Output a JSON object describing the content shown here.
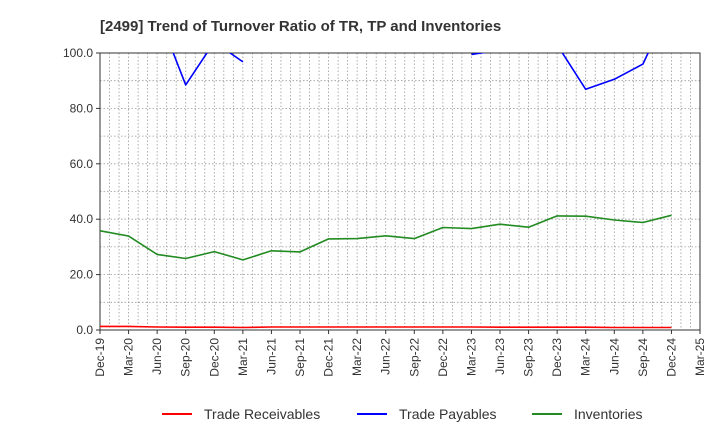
{
  "chart_data": {
    "type": "line",
    "title": "[2499]  Trend of Turnover Ratio of TR, TP and Inventories",
    "xlabel": "",
    "ylabel": "",
    "ylim": [
      0,
      100
    ],
    "yticks": [
      "0.0",
      "20.0",
      "40.0",
      "60.0",
      "80.0",
      "100.0"
    ],
    "x_tick_labels": [
      "Dec-19",
      "Mar-20",
      "Jun-20",
      "Sep-20",
      "Dec-20",
      "Mar-21",
      "Jun-21",
      "Sep-21",
      "Dec-21",
      "Mar-22",
      "Jun-22",
      "Sep-22",
      "Dec-22",
      "Mar-23",
      "Jun-23",
      "Sep-23",
      "Dec-23",
      "Mar-24",
      "Jun-24",
      "Sep-24",
      "Dec-24",
      "Mar-25"
    ],
    "x": [
      "Dec-19",
      "Mar-20",
      "Jun-20",
      "Sep-20",
      "Dec-20",
      "Mar-21",
      "Jun-21",
      "Sep-21",
      "Dec-21",
      "Mar-22",
      "Jun-22",
      "Sep-22",
      "Dec-22",
      "Mar-23",
      "Jun-23",
      "Sep-23",
      "Dec-23",
      "Mar-24",
      "Jun-24",
      "Sep-24",
      "Dec-24"
    ],
    "grid": true,
    "legend_position": "bottom",
    "series": [
      {
        "name": "Trade Receivables",
        "color": "#ff0000",
        "values": [
          1.3,
          1.3,
          1.1,
          1.0,
          1.0,
          0.9,
          1.1,
          1.1,
          1.1,
          1.1,
          1.1,
          1.1,
          1.1,
          1.1,
          1.0,
          1.0,
          1.0,
          1.0,
          0.9,
          0.9,
          0.9
        ]
      },
      {
        "name": "Trade Payables",
        "color": "#0000ff",
        "values": [
          null,
          null,
          115,
          88.5,
          104,
          96.8,
          null,
          null,
          null,
          null,
          null,
          null,
          null,
          99.5,
          101,
          null,
          103,
          86.9,
          90.5,
          96.0,
          118
        ]
      },
      {
        "name": "Inventories",
        "color": "#228b22",
        "values": [
          35.8,
          33.9,
          27.3,
          25.8,
          28.3,
          25.3,
          28.6,
          28.2,
          32.9,
          33.0,
          34.0,
          33.0,
          37.0,
          36.6,
          38.2,
          37.1,
          41.2,
          41.1,
          39.7,
          38.8,
          41.4
        ]
      }
    ]
  }
}
